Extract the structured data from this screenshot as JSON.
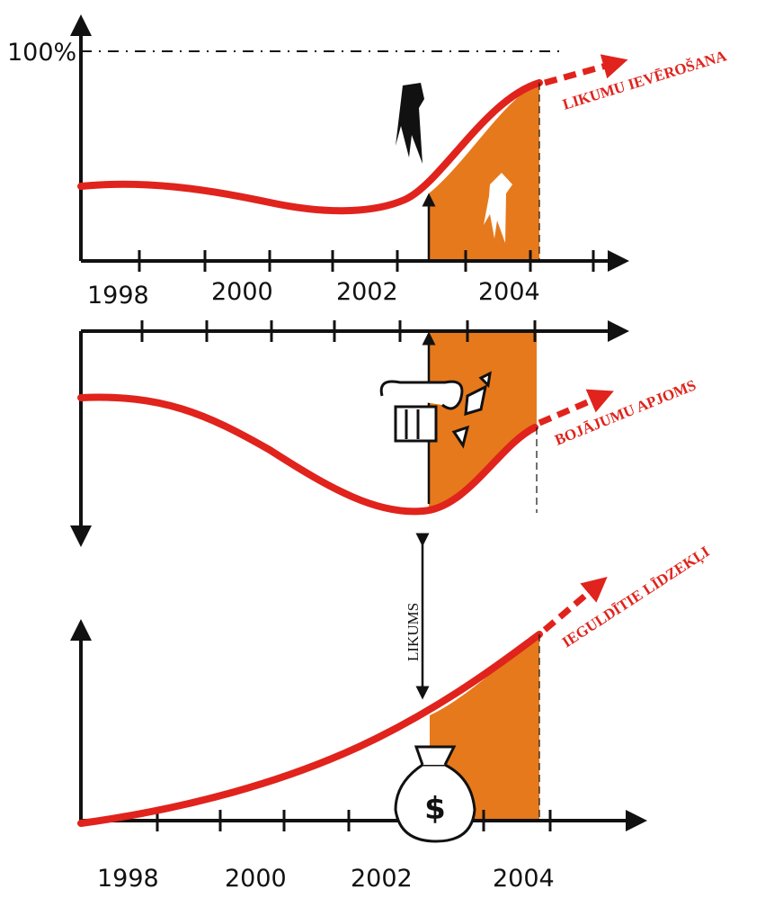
{
  "scale_label": "100%",
  "panels": [
    {
      "label": "LIKUMU IEVĒROŠANA",
      "years": [
        "1998",
        "2000",
        "2002",
        "2004"
      ]
    },
    {
      "label": "BOJĀJUMU APJOMS"
    },
    {
      "label": "IEGULDĪTIE LĪDZEKĻI",
      "years": [
        "1998",
        "2000",
        "2002",
        "2004"
      ]
    }
  ],
  "law_label": "LIKUMS",
  "money_symbol": "$"
}
